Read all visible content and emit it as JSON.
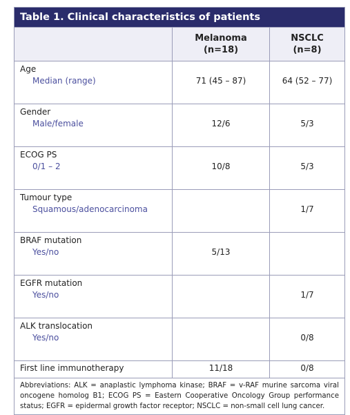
{
  "title": "Table 1. Clinical characteristics of patients",
  "table": {
    "columns": [
      {
        "name": "Melanoma",
        "n": "(n=18)"
      },
      {
        "name": "NSCLC",
        "n": "(n=8)"
      }
    ],
    "rows": [
      {
        "label": "Age",
        "sublabel": "Median (range)",
        "values": [
          "71 (45 – 87)",
          "64 (52 – 77)"
        ]
      },
      {
        "label": "Gender",
        "sublabel": "Male/female",
        "values": [
          "12/6",
          "5/3"
        ]
      },
      {
        "label": "ECOG PS",
        "sublabel": "0/1 – 2",
        "values": [
          "10/8",
          "5/3"
        ]
      },
      {
        "label": "Tumour type",
        "sublabel": "Squamous/adenocarcinoma",
        "values": [
          null,
          "1/7"
        ]
      },
      {
        "label": "BRAF mutation",
        "sublabel": "Yes/no",
        "values": [
          "5/13",
          null
        ]
      },
      {
        "label": "EGFR mutation",
        "sublabel": "Yes/no",
        "values": [
          null,
          "1/7"
        ]
      },
      {
        "label": "ALK translocation",
        "sublabel": "Yes/no",
        "values": [
          null,
          "0/8"
        ]
      },
      {
        "label": "First line immunotherapy",
        "sublabel": null,
        "values": [
          "11/18",
          "0/8"
        ]
      }
    ]
  },
  "footnote": "Abbreviations: ALK = anaplastic lymphoma kinase; BRAF = v-RAF murine sarcoma viral oncogene homolog B1; ECOG PS = Eastern Cooperative Oncology Group performance status; EGFR = epidermal growth factor receptor; NSCLC = non-small cell lung cancer."
}
